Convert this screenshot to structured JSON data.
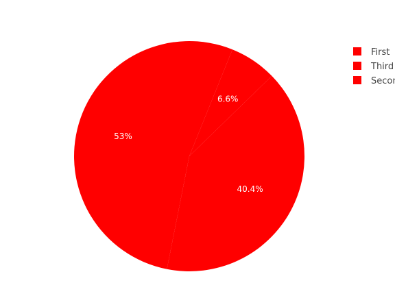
{
  "chart_data": {
    "type": "pie",
    "labels": [
      "First",
      "Third",
      "Second"
    ],
    "values": [
      6.6,
      40.4,
      53
    ],
    "text_labels": [
      "6.6%",
      "40.4%",
      "53%"
    ],
    "colors": [
      "#ff0000",
      "#ff0000",
      "#ff0000"
    ],
    "legend": {
      "placement": "top-right",
      "items": [
        "First",
        "Third",
        "Second"
      ]
    },
    "title": ""
  }
}
